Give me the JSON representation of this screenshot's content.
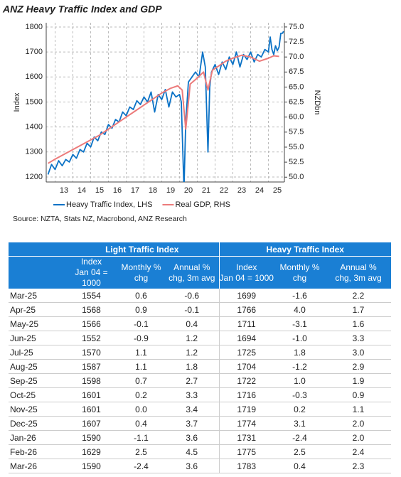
{
  "chart_data": {
    "type": "line",
    "title": "ANZ Heavy Traffic Index and GDP",
    "source": "Source: NZTA, Stats NZ, Macrobond, ANZ Research",
    "ylabel": "Index",
    "y2label": "NZDbn",
    "xlim": [
      2012.5,
      2025.9
    ],
    "xticks": [
      {
        "value": 2013,
        "label": "13"
      },
      {
        "value": 2014,
        "label": "14"
      },
      {
        "value": 2015,
        "label": "15"
      },
      {
        "value": 2016,
        "label": "16"
      },
      {
        "value": 2017,
        "label": "17"
      },
      {
        "value": 2018,
        "label": "18"
      },
      {
        "value": 2019,
        "label": "19"
      },
      {
        "value": 2020,
        "label": "20"
      },
      {
        "value": 2021,
        "label": "21"
      },
      {
        "value": 2022,
        "label": "22"
      },
      {
        "value": 2023,
        "label": "23"
      },
      {
        "value": 2024,
        "label": "24"
      },
      {
        "value": 2025,
        "label": "25"
      }
    ],
    "ylim": [
      1180,
      1817
    ],
    "yticks": [
      1200,
      1300,
      1400,
      1500,
      1600,
      1700,
      1800
    ],
    "y2lim": [
      49.2,
      75.7
    ],
    "y2ticks": [
      {
        "value": 50,
        "label": "50.0"
      },
      52.5,
      {
        "value": 55,
        "label": "55.0"
      },
      57.5,
      {
        "value": 60,
        "label": "60.0"
      },
      62.5,
      {
        "value": 65,
        "label": "65.0"
      },
      67.5,
      {
        "value": 70,
        "label": "70.0"
      },
      72.5,
      {
        "value": 75,
        "label": "75.0"
      }
    ],
    "grid": true,
    "series": [
      {
        "name": "Heavy Traffic Index, LHS",
        "color": "#0b72c6",
        "x": [
          2012.6,
          2012.8,
          2013.0,
          2013.2,
          2013.4,
          2013.6,
          2013.8,
          2014.0,
          2014.2,
          2014.4,
          2014.6,
          2014.8,
          2015.0,
          2015.2,
          2015.4,
          2015.6,
          2015.8,
          2016.0,
          2016.2,
          2016.4,
          2016.6,
          2016.8,
          2017.0,
          2017.2,
          2017.4,
          2017.6,
          2017.8,
          2018.0,
          2018.2,
          2018.4,
          2018.6,
          2018.8,
          2019.0,
          2019.2,
          2019.4,
          2019.6,
          2019.8,
          2020.0,
          2020.1,
          2020.25,
          2020.35,
          2020.5,
          2020.7,
          2020.9,
          2021.1,
          2021.3,
          2021.45,
          2021.6,
          2021.7,
          2021.8,
          2022.0,
          2022.2,
          2022.4,
          2022.6,
          2022.8,
          2023.0,
          2023.2,
          2023.4,
          2023.6,
          2023.8,
          2024.0,
          2024.2,
          2024.4,
          2024.6,
          2024.8,
          2025.0,
          2025.1,
          2025.2,
          2025.3,
          2025.4,
          2025.5,
          2025.6,
          2025.7,
          2025.8,
          2025.85
        ],
        "values": [
          1210,
          1250,
          1230,
          1265,
          1245,
          1270,
          1260,
          1290,
          1275,
          1310,
          1300,
          1335,
          1320,
          1360,
          1345,
          1380,
          1370,
          1410,
          1395,
          1430,
          1420,
          1460,
          1445,
          1480,
          1470,
          1505,
          1490,
          1520,
          1500,
          1540,
          1460,
          1530,
          1510,
          1550,
          1480,
          1540,
          1520,
          1530,
          1500,
          1150,
          1420,
          1580,
          1600,
          1620,
          1600,
          1700,
          1640,
          1300,
          1560,
          1620,
          1650,
          1610,
          1660,
          1630,
          1680,
          1650,
          1700,
          1640,
          1690,
          1670,
          1700,
          1660,
          1690,
          1680,
          1710,
          1700,
          1760,
          1710,
          1690,
          1725,
          1705,
          1720,
          1775,
          1775,
          1783
        ]
      },
      {
        "name": "Real GDP, RHS",
        "color": "#ec7b7b",
        "axis": "y2",
        "x": [
          2012.6,
          2013.0,
          2013.5,
          2014.0,
          2014.5,
          2015.0,
          2015.5,
          2016.0,
          2016.5,
          2017.0,
          2017.5,
          2018.0,
          2018.5,
          2019.0,
          2019.5,
          2019.9,
          2020.15,
          2020.35,
          2020.6,
          2021.0,
          2021.35,
          2021.6,
          2021.85,
          2022.2,
          2022.6,
          2023.0,
          2023.5,
          2024.0,
          2024.5,
          2025.0,
          2025.3,
          2025.6
        ],
        "values": [
          52.3,
          53.0,
          53.8,
          54.6,
          55.4,
          56.2,
          57.0,
          58.0,
          59.0,
          60.0,
          61.0,
          62.0,
          63.0,
          64.0,
          64.8,
          65.2,
          64.5,
          58.0,
          65.5,
          66.5,
          67.5,
          64.5,
          67.8,
          68.5,
          69.3,
          69.8,
          70.3,
          70.0,
          69.3,
          69.8,
          70.2,
          70.1
        ]
      }
    ]
  },
  "table": {
    "groups": [
      "Light Traffic Index",
      "Heavy Traffic Index"
    ],
    "columns": [
      [
        "Index",
        "Jan 04 = 1000"
      ],
      [
        "Monthly %",
        "chg"
      ],
      [
        "Annual %",
        "chg, 3m avg"
      ],
      [
        "Index",
        "Jan 04 = 1000"
      ],
      [
        "Monthly %",
        "chg"
      ],
      [
        "Annual %",
        "chg, 3m avg"
      ]
    ],
    "rows": [
      [
        "Mar-25",
        "1554",
        "0.6",
        "-0.6",
        "1699",
        "-1.6",
        "2.2"
      ],
      [
        "Apr-25",
        "1568",
        "0.9",
        "-0.1",
        "1766",
        "4.0",
        "1.7"
      ],
      [
        "May-25",
        "1566",
        "-0.1",
        "0.4",
        "1711",
        "-3.1",
        "1.6"
      ],
      [
        "Jun-25",
        "1552",
        "-0.9",
        "1.2",
        "1694",
        "-1.0",
        "3.3"
      ],
      [
        "Jul-25",
        "1570",
        "1.1",
        "1.2",
        "1725",
        "1.8",
        "3.0"
      ],
      [
        "Aug-25",
        "1587",
        "1.1",
        "1.8",
        "1704",
        "-1.2",
        "2.9"
      ],
      [
        "Sep-25",
        "1598",
        "0.7",
        "2.7",
        "1722",
        "1.0",
        "1.9"
      ],
      [
        "Oct-25",
        "1601",
        "0.2",
        "3.3",
        "1716",
        "-0.3",
        "0.9"
      ],
      [
        "Nov-25",
        "1601",
        "0.0",
        "3.4",
        "1719",
        "0.2",
        "1.1"
      ],
      [
        "Dec-25",
        "1607",
        "0.4",
        "3.7",
        "1774",
        "3.1",
        "2.0"
      ],
      [
        "Jan-26",
        "1590",
        "-1.1",
        "3.6",
        "1731",
        "-2.4",
        "2.0"
      ],
      [
        "Feb-26",
        "1629",
        "2.5",
        "4.5",
        "1775",
        "2.5",
        "2.4"
      ],
      [
        "Mar-26",
        "1590",
        "-2.4",
        "3.6",
        "1783",
        "0.4",
        "2.3"
      ]
    ]
  }
}
